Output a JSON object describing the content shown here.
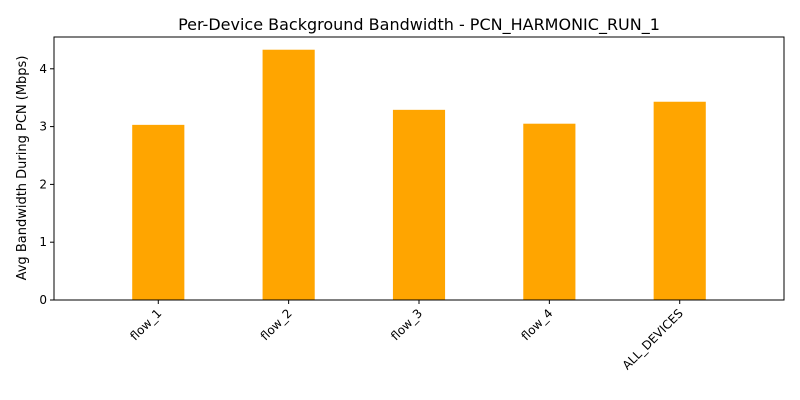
{
  "chart_data": {
    "type": "bar",
    "title": "Per-Device Background Bandwidth - PCN_HARMONIC_RUN_1",
    "xlabel": "",
    "ylabel": "Avg Bandwidth During PCN (Mbps)",
    "categories": [
      "flow_1",
      "flow_2",
      "flow_3",
      "flow_4",
      "ALL_DEVICES"
    ],
    "values": [
      3.03,
      4.33,
      3.29,
      3.05,
      3.43
    ],
    "ylim": [
      0,
      4.55
    ],
    "yticks": [
      0,
      1,
      2,
      3,
      4
    ],
    "bar_color": "#FFA500",
    "grid": false,
    "legend": "none"
  }
}
